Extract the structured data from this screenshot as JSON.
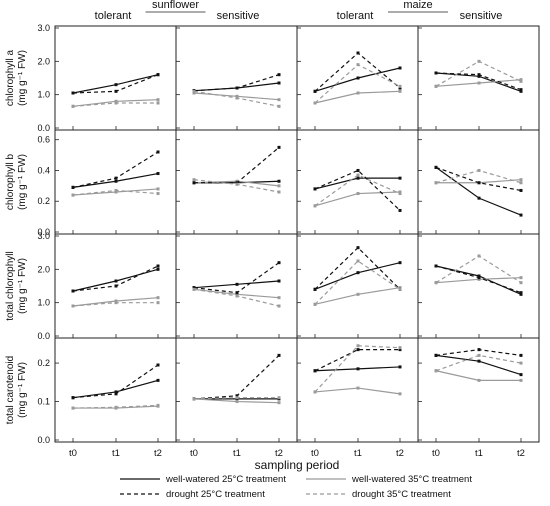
{
  "header": {
    "groups": [
      {
        "name": "sunflower",
        "left_label": "tolerant",
        "right_label": "sensitive"
      },
      {
        "name": "maize",
        "left_label": "tolerant",
        "right_label": "sensitive"
      }
    ]
  },
  "xlabel": "sampling period",
  "legend": [
    {
      "label": "well-watered 25°C treatment",
      "color": "#111111",
      "dash": false
    },
    {
      "label": "well-watered 35°C treatment",
      "color": "#9a9a9a",
      "dash": false
    },
    {
      "label": "drought 25°C treatment",
      "color": "#111111",
      "dash": true
    },
    {
      "label": "drought 35°C treatment",
      "color": "#9a9a9a",
      "dash": true
    }
  ],
  "chart_data": {
    "type": "line",
    "categories": [
      "t0",
      "t1",
      "t2"
    ],
    "series_names": [
      "well-watered 25°C treatment",
      "well-watered 35°C treatment",
      "drought 25°C treatment",
      "drought 35°C treatment"
    ],
    "rows": [
      {
        "ylabel_lines": [
          "chlorophyll a",
          "(mg g⁻¹ FW)"
        ],
        "ylim": [
          0,
          3.0
        ],
        "yticks": [
          "0.0",
          "1.0",
          "2.0",
          "3.0"
        ],
        "panels": [
          {
            "series": [
              [
                1.05,
                1.3,
                1.6
              ],
              [
                0.65,
                0.8,
                0.85
              ],
              [
                1.05,
                1.1,
                1.6
              ],
              [
                0.65,
                0.75,
                0.75
              ]
            ]
          },
          {
            "series": [
              [
                1.12,
                1.2,
                1.35
              ],
              [
                1.05,
                0.95,
                0.85
              ],
              [
                1.12,
                1.2,
                1.6
              ],
              [
                1.1,
                0.9,
                0.65
              ]
            ]
          },
          {
            "series": [
              [
                1.1,
                1.5,
                1.8
              ],
              [
                0.75,
                1.05,
                1.1
              ],
              [
                1.1,
                2.25,
                1.2
              ],
              [
                0.75,
                1.9,
                1.25
              ]
            ]
          },
          {
            "series": [
              [
                1.65,
                1.55,
                1.1
              ],
              [
                1.25,
                1.35,
                1.45
              ],
              [
                1.65,
                1.6,
                1.15
              ],
              [
                1.25,
                2.0,
                1.4
              ]
            ]
          }
        ]
      },
      {
        "ylabel_lines": [
          "chlorophyll b",
          "(mg g⁻¹ FW)"
        ],
        "ylim": [
          0,
          0.65
        ],
        "yticks": [
          "0.0",
          "0.2",
          "0.4",
          "0.6"
        ],
        "panels": [
          {
            "series": [
              [
                0.29,
                0.33,
                0.38
              ],
              [
                0.24,
                0.26,
                0.28
              ],
              [
                0.29,
                0.35,
                0.52
              ],
              [
                0.24,
                0.27,
                0.25
              ]
            ]
          },
          {
            "series": [
              [
                0.32,
                0.32,
                0.33
              ],
              [
                0.32,
                0.33,
                0.3
              ],
              [
                0.32,
                0.32,
                0.55
              ],
              [
                0.34,
                0.31,
                0.26
              ]
            ]
          },
          {
            "series": [
              [
                0.28,
                0.35,
                0.35
              ],
              [
                0.17,
                0.25,
                0.26
              ],
              [
                0.28,
                0.4,
                0.14
              ],
              [
                0.17,
                0.37,
                0.25
              ]
            ]
          },
          {
            "series": [
              [
                0.42,
                0.22,
                0.11
              ],
              [
                0.32,
                0.32,
                0.34
              ],
              [
                0.42,
                0.32,
                0.27
              ],
              [
                0.32,
                0.4,
                0.32
              ]
            ]
          }
        ]
      },
      {
        "ylabel_lines": [
          "total chlorophyll",
          "(mg g⁻¹ FW)"
        ],
        "ylim": [
          0,
          3.0
        ],
        "yticks": [
          "0.0",
          "1.0",
          "2.0",
          "3.0"
        ],
        "panels": [
          {
            "series": [
              [
                1.35,
                1.65,
                2.0
              ],
              [
                0.9,
                1.05,
                1.15
              ],
              [
                1.35,
                1.5,
                2.1
              ],
              [
                0.9,
                1.0,
                1.0
              ]
            ]
          },
          {
            "series": [
              [
                1.45,
                1.55,
                1.65
              ],
              [
                1.4,
                1.25,
                1.15
              ],
              [
                1.45,
                1.3,
                2.2
              ],
              [
                1.4,
                1.2,
                0.9
              ]
            ]
          },
          {
            "series": [
              [
                1.4,
                1.9,
                2.2
              ],
              [
                0.95,
                1.25,
                1.45
              ],
              [
                1.4,
                2.65,
                1.4
              ],
              [
                0.95,
                2.25,
                1.4
              ]
            ]
          },
          {
            "series": [
              [
                2.1,
                1.8,
                1.25
              ],
              [
                1.6,
                1.7,
                1.75
              ],
              [
                2.1,
                1.75,
                1.3
              ],
              [
                1.6,
                2.4,
                1.6
              ]
            ]
          }
        ]
      },
      {
        "ylabel_lines": [
          "total carotenoid",
          "(mg g⁻¹ FW)"
        ],
        "ylim": [
          0,
          0.26
        ],
        "yticks": [
          "0.0",
          "0.1",
          "0.2"
        ],
        "panels": [
          {
            "series": [
              [
                0.11,
                0.125,
                0.155
              ],
              [
                0.083,
                0.083,
                0.088
              ],
              [
                0.11,
                0.12,
                0.195
              ],
              [
                0.083,
                0.085,
                0.09
              ]
            ]
          },
          {
            "series": [
              [
                0.107,
                0.107,
                0.107
              ],
              [
                0.107,
                0.1,
                0.097
              ],
              [
                0.107,
                0.115,
                0.22
              ],
              [
                0.107,
                0.11,
                0.11
              ]
            ]
          },
          {
            "series": [
              [
                0.18,
                0.185,
                0.19
              ],
              [
                0.125,
                0.135,
                0.12
              ],
              [
                0.18,
                0.235,
                0.235
              ],
              [
                0.125,
                0.245,
                0.24
              ]
            ]
          },
          {
            "series": [
              [
                0.22,
                0.205,
                0.17
              ],
              [
                0.18,
                0.155,
                0.155
              ],
              [
                0.22,
                0.235,
                0.22
              ],
              [
                0.18,
                0.22,
                0.2
              ]
            ]
          }
        ]
      }
    ]
  }
}
